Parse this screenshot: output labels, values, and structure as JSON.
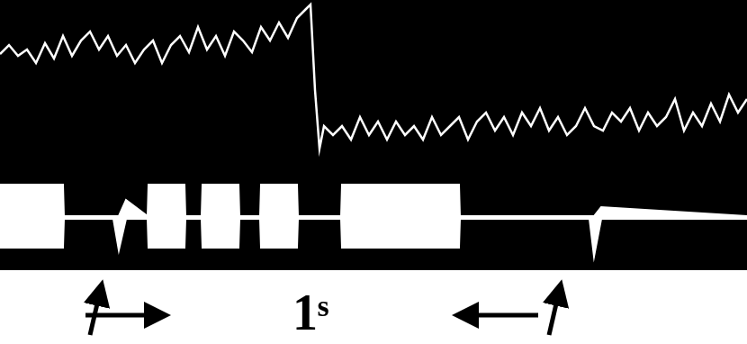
{
  "chart_data": {
    "type": "line",
    "annotation": "1ˢ",
    "xlim": [
      0,
      830
    ],
    "ylim": [
      0,
      300
    ],
    "tick_labels": false,
    "grid": false,
    "series": [
      {
        "color": "#ffffff",
        "x": [
          0,
          10,
          20,
          30,
          40,
          50,
          60,
          70,
          80,
          90,
          100,
          110,
          120,
          130,
          140,
          150,
          160,
          170,
          180,
          190,
          200,
          210,
          220,
          230,
          240,
          250,
          260,
          270,
          280,
          290,
          300,
          310,
          320,
          330,
          340,
          345,
          350,
          355,
          360,
          370,
          380,
          390,
          400,
          410,
          420,
          430,
          440,
          450,
          460,
          470,
          480,
          490,
          500,
          510,
          520,
          530,
          540,
          550,
          560,
          570,
          580,
          590,
          600,
          610,
          620,
          630,
          640,
          650,
          660,
          670,
          680,
          690,
          700,
          710,
          720,
          730,
          740,
          750,
          760,
          770,
          780,
          790,
          800,
          810,
          820,
          830
        ],
        "values": [
          240,
          250,
          238,
          245,
          230,
          252,
          235,
          260,
          238,
          255,
          265,
          245,
          260,
          238,
          250,
          230,
          245,
          255,
          230,
          250,
          260,
          242,
          270,
          245,
          260,
          238,
          265,
          255,
          242,
          270,
          255,
          275,
          258,
          280,
          290,
          295,
          200,
          135,
          160,
          150,
          160,
          145,
          170,
          150,
          165,
          145,
          165,
          150,
          160,
          145,
          170,
          150,
          160,
          170,
          145,
          165,
          175,
          155,
          170,
          150,
          175,
          160,
          180,
          155,
          170,
          150,
          160,
          180,
          160,
          155,
          175,
          165,
          180,
          155,
          175,
          160,
          170,
          190,
          155,
          175,
          160,
          185,
          165,
          195,
          175,
          190
        ]
      },
      {
        "color": "#ffffff",
        "x": [
          0,
          70,
          71,
          126,
          132,
          140,
          164,
          165,
          205,
          206,
          224,
          225,
          265,
          266,
          289,
          290,
          330,
          331,
          379,
          380,
          510,
          511,
          655,
          660,
          668,
          830
        ],
        "values": [
          95,
          95,
          60,
          60,
          60,
          78,
          60,
          95,
          95,
          60,
          60,
          95,
          95,
          60,
          60,
          95,
          95,
          60,
          60,
          95,
          95,
          60,
          60,
          60,
          70,
          60
        ]
      },
      {
        "color": "#ffffff",
        "x": [
          0,
          70,
          71,
          126,
          132,
          140,
          164,
          165,
          205,
          206,
          224,
          225,
          265,
          266,
          289,
          290,
          330,
          331,
          379,
          380,
          510,
          511,
          655,
          660,
          668,
          830
        ],
        "values": [
          25,
          25,
          57,
          57,
          22,
          57,
          57,
          25,
          25,
          57,
          57,
          25,
          25,
          57,
          57,
          25,
          25,
          57,
          57,
          25,
          25,
          57,
          57,
          15,
          57,
          57
        ]
      }
    ]
  }
}
